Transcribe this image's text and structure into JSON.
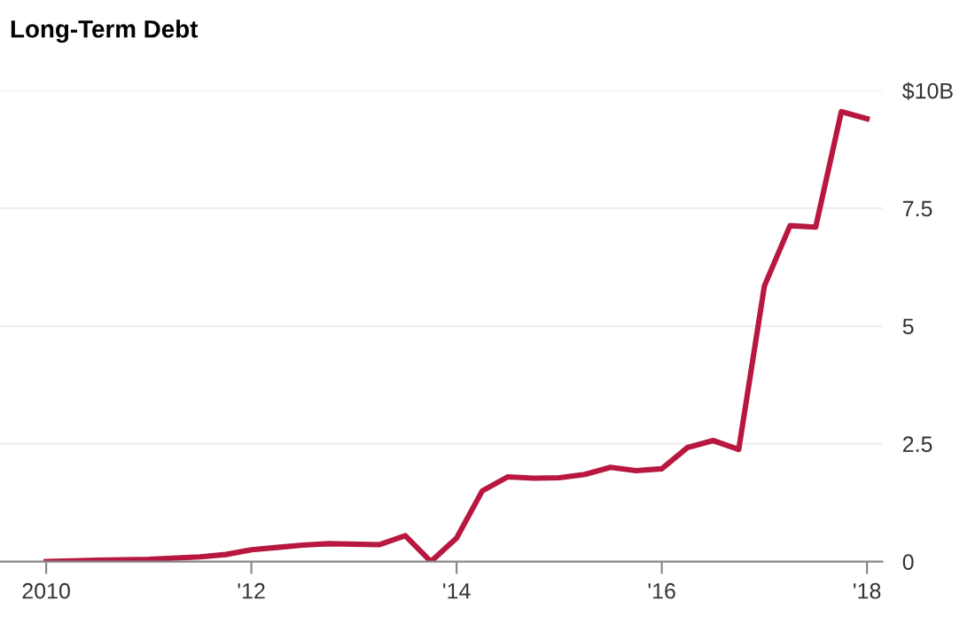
{
  "chart_data": {
    "type": "line",
    "title": "Long-Term Debt",
    "x": [
      2010.0,
      2010.5,
      2011.0,
      2011.5,
      2011.75,
      2012.0,
      2012.25,
      2012.5,
      2012.75,
      2013.25,
      2013.5,
      2013.75,
      2014.0,
      2014.25,
      2014.5,
      2014.75,
      2015.0,
      2015.25,
      2015.5,
      2015.75,
      2016.0,
      2016.25,
      2016.5,
      2016.75,
      2017.0,
      2017.25,
      2017.5,
      2017.75,
      2018.0
    ],
    "series": [
      {
        "color": "#b8173f",
        "values": [
          0,
          0.03,
          0.05,
          0.1,
          0.15,
          0.25,
          0.3,
          0.35,
          0.38,
          0.36,
          0.55,
          0,
          0.5,
          1.5,
          1.8,
          1.77,
          1.78,
          1.85,
          2.0,
          1.93,
          1.97,
          2.42,
          2.57,
          2.38,
          5.85,
          7.13,
          7.1,
          9.55,
          9.4
        ]
      }
    ],
    "xlim": [
      2009.55,
      2018.15
    ],
    "ylim": [
      0,
      10
    ],
    "xticks": [
      {
        "value": 2010,
        "label": "2010"
      },
      {
        "value": 2012,
        "label": "'12"
      },
      {
        "value": 2014,
        "label": "'14"
      },
      {
        "value": 2016,
        "label": "'16"
      },
      {
        "value": 2018,
        "label": "'18"
      }
    ],
    "yticks": [
      0,
      2.5,
      5,
      7.5,
      {
        "value": 10,
        "label": "$10B"
      }
    ],
    "grid": "y"
  }
}
